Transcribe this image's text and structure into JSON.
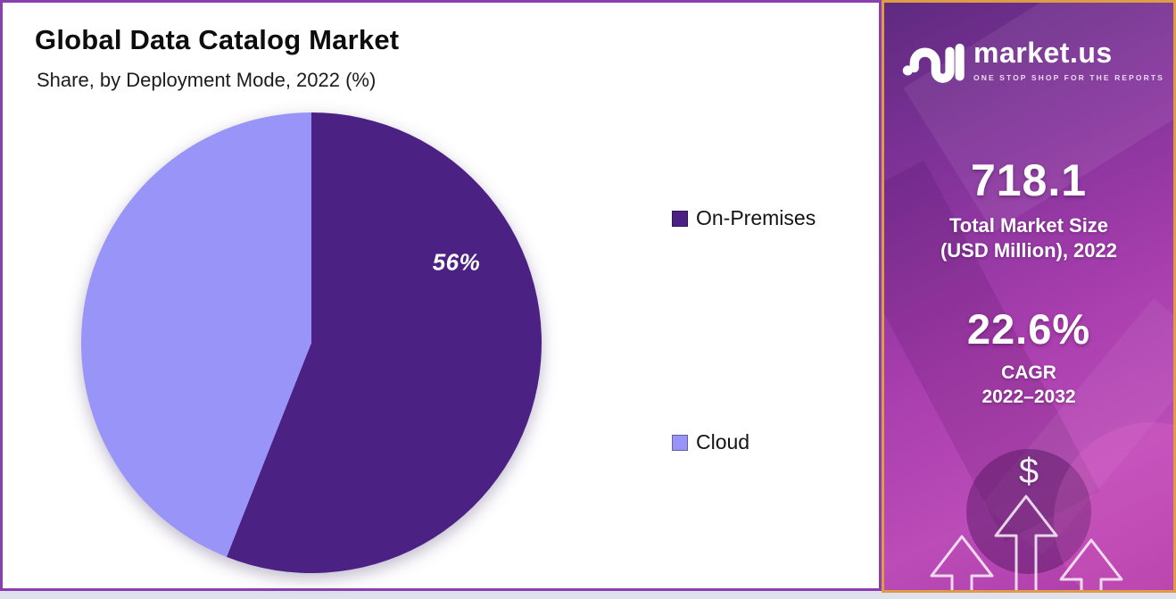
{
  "chart": {
    "title": "Global Data Catalog Market",
    "subtitle": "Share, by Deployment Mode, 2022 (%)"
  },
  "chart_data": {
    "type": "pie",
    "labels": [
      "On-Premises",
      "Cloud"
    ],
    "values": [
      56,
      44
    ],
    "colors": [
      "#4b2183",
      "#9894f8"
    ],
    "data_labels": [
      "56%",
      ""
    ],
    "shown_data_label": "56%",
    "legend_position": "right",
    "start_angle_deg": 0,
    "direction": "clockwise"
  },
  "sidebar": {
    "brand": "market.us",
    "tagline": "ONE STOP SHOP FOR THE REPORTS",
    "stat1": {
      "value": "718.1",
      "label_line1": "Total Market Size",
      "label_line2": "(USD Million), 2022"
    },
    "stat2": {
      "value": "22.6%",
      "label_line1": "CAGR",
      "label_line2": "2022–2032"
    },
    "dollar_symbol": "$"
  },
  "colors": {
    "on_premises_slice": "#4b2183",
    "cloud_slice": "#9894f8",
    "chart_panel_border": "#8a3fae",
    "sidebar_border": "#dd9c45",
    "sidebar_gradient_top": "#5f2a80",
    "sidebar_gradient_bottom": "#ad3ba6",
    "page_background": "#dfe2ec"
  }
}
